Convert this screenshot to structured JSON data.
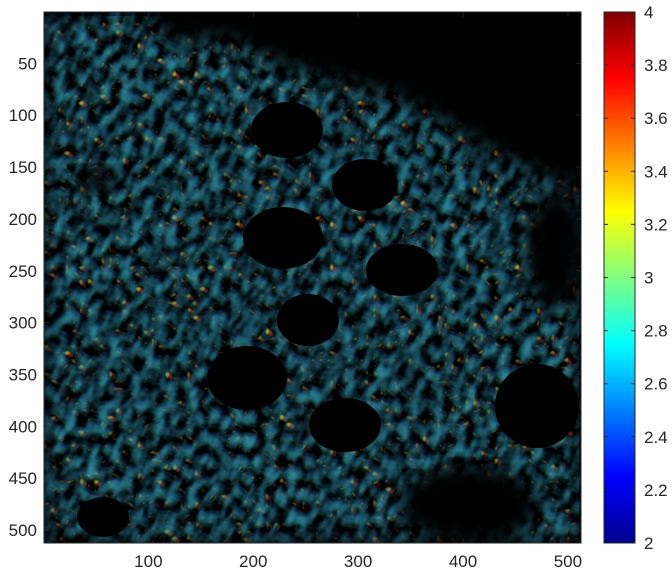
{
  "image": {
    "description_kind": "false-color intensity map of tissue texture",
    "colormap": "jet",
    "background_color": "#000000"
  },
  "x_axis": {
    "ticks": [
      "100",
      "200",
      "300",
      "400",
      "500"
    ],
    "range": [
      1,
      512
    ]
  },
  "y_axis": {
    "ticks": [
      "50",
      "100",
      "150",
      "200",
      "250",
      "300",
      "350",
      "400",
      "450",
      "500"
    ],
    "range": [
      1,
      512
    ],
    "reversed": true
  },
  "colorbar": {
    "ticks": [
      "2",
      "2.2",
      "2.4",
      "2.6",
      "2.8",
      "3",
      "3.2",
      "3.4",
      "3.6",
      "3.8",
      "4"
    ],
    "range": [
      2,
      4
    ],
    "colors": [
      "#00008f",
      "#0000ff",
      "#0080ff",
      "#00ffff",
      "#80ff80",
      "#ffff00",
      "#ff8000",
      "#ff0000",
      "#800000"
    ]
  }
}
